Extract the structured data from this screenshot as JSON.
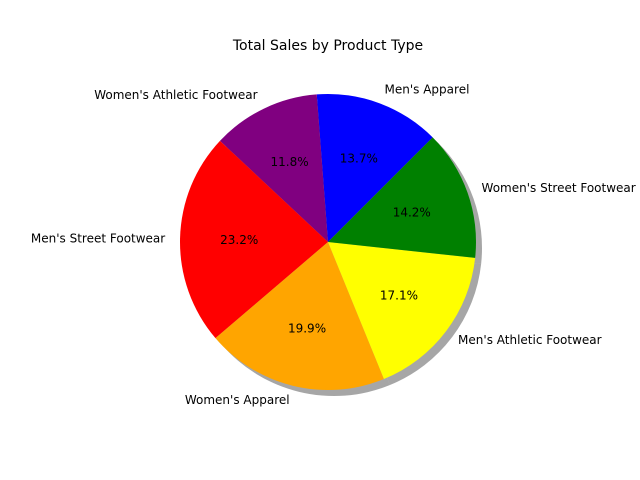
{
  "chart_data": {
    "type": "pie",
    "title": "Total Sales by Product Type",
    "start_angle_deg": 45,
    "shadow": true,
    "slices": [
      {
        "label": "Men's Apparel",
        "value": 13.7,
        "pct_label": "13.7%",
        "color": "#0000ff"
      },
      {
        "label": "Women's Athletic Footwear",
        "value": 11.8,
        "pct_label": "11.8%",
        "color": "#800080"
      },
      {
        "label": "Men's Street Footwear",
        "value": 23.2,
        "pct_label": "23.2%",
        "color": "#ff0000"
      },
      {
        "label": "Women's Apparel",
        "value": 19.9,
        "pct_label": "19.9%",
        "color": "#ffa500"
      },
      {
        "label": "Men's Athletic Footwear",
        "value": 17.1,
        "pct_label": "17.1%",
        "color": "#ffff00"
      },
      {
        "label": "Women's Street Footwear",
        "value": 14.2,
        "pct_label": "14.2%",
        "color": "#008000"
      }
    ]
  }
}
